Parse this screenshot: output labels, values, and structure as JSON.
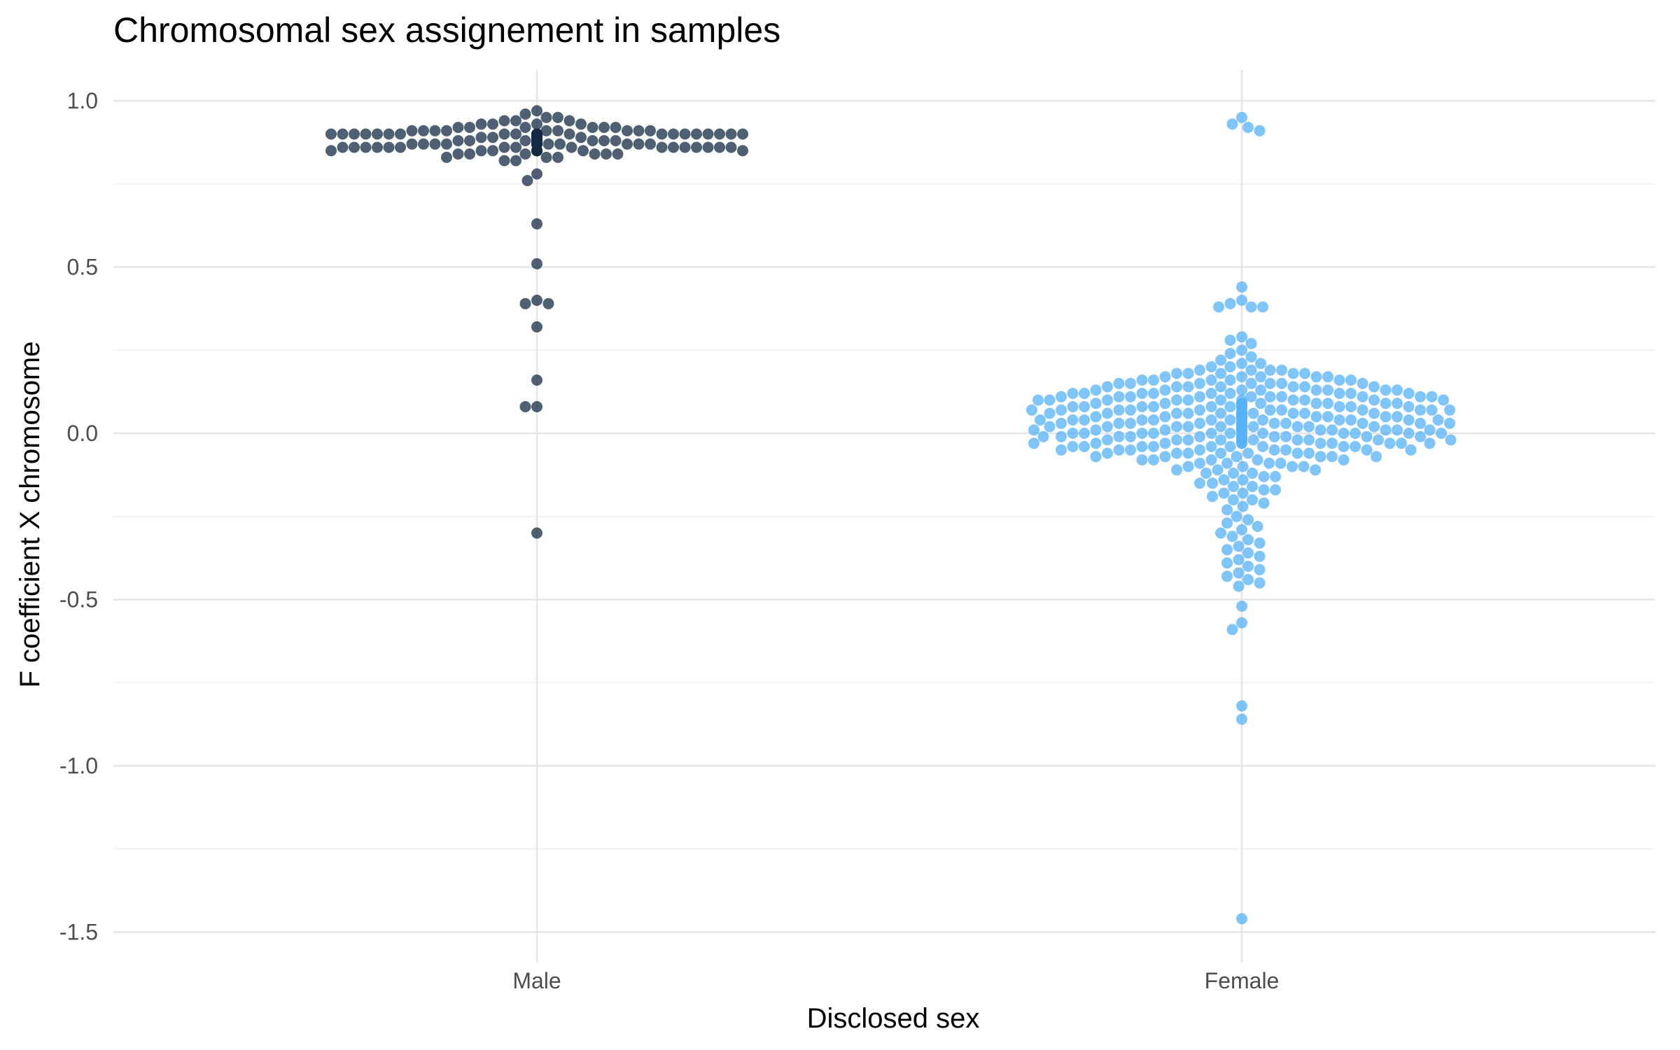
{
  "chart_data": {
    "type": "scatter",
    "subtype": "beeswarm",
    "title": "Chromosomal sex assignement in samples",
    "xlabel": "Disclosed sex",
    "ylabel": "F coefficient X chromosome",
    "categories": [
      "Male",
      "Female"
    ],
    "yticks": [
      "1.0",
      "0.5",
      "0.0",
      "-0.5",
      "-1.0",
      "-1.5"
    ],
    "ytick_values": [
      1.0,
      0.5,
      0.0,
      -0.5,
      -1.0,
      -1.5
    ],
    "ylim": [
      -1.6,
      1.1
    ],
    "grid": true,
    "legend": "none",
    "series": [
      {
        "category": "Male",
        "color": "#132b43",
        "values": [
          0.97,
          0.96,
          0.95,
          0.95,
          0.94,
          0.94,
          0.94,
          0.93,
          0.93,
          0.93,
          0.93,
          0.92,
          0.92,
          0.92,
          0.92,
          0.92,
          0.92,
          0.91,
          0.91,
          0.91,
          0.91,
          0.91,
          0.91,
          0.91,
          0.91,
          0.91,
          0.9,
          0.9,
          0.9,
          0.9,
          0.9,
          0.9,
          0.9,
          0.9,
          0.9,
          0.9,
          0.9,
          0.9,
          0.9,
          0.9,
          0.9,
          0.9,
          0.9,
          0.9,
          0.9,
          0.9,
          0.9,
          0.9,
          0.9,
          0.9,
          0.89,
          0.89,
          0.89,
          0.89,
          0.89,
          0.89,
          0.89,
          0.89,
          0.89,
          0.89,
          0.89,
          0.89,
          0.89,
          0.89,
          0.89,
          0.89,
          0.89,
          0.89,
          0.89,
          0.89,
          0.89,
          0.89,
          0.89,
          0.89,
          0.89,
          0.89,
          0.89,
          0.89,
          0.89,
          0.89,
          0.89,
          0.89,
          0.89,
          0.89,
          0.89,
          0.89,
          0.89,
          0.89,
          0.89,
          0.88,
          0.88,
          0.88,
          0.88,
          0.88,
          0.88,
          0.88,
          0.88,
          0.88,
          0.88,
          0.88,
          0.88,
          0.88,
          0.88,
          0.88,
          0.88,
          0.88,
          0.88,
          0.88,
          0.88,
          0.88,
          0.88,
          0.88,
          0.88,
          0.88,
          0.88,
          0.88,
          0.88,
          0.88,
          0.88,
          0.88,
          0.87,
          0.87,
          0.87,
          0.87,
          0.87,
          0.87,
          0.87,
          0.87,
          0.87,
          0.87,
          0.87,
          0.87,
          0.87,
          0.87,
          0.87,
          0.87,
          0.87,
          0.87,
          0.87,
          0.87,
          0.87,
          0.87,
          0.87,
          0.87,
          0.86,
          0.86,
          0.86,
          0.86,
          0.86,
          0.86,
          0.86,
          0.86,
          0.86,
          0.86,
          0.86,
          0.86,
          0.86,
          0.86,
          0.86,
          0.86,
          0.85,
          0.85,
          0.85,
          0.85,
          0.85,
          0.85,
          0.85,
          0.85,
          0.85,
          0.85,
          0.84,
          0.84,
          0.84,
          0.84,
          0.84,
          0.84,
          0.83,
          0.83,
          0.83,
          0.82,
          0.82,
          0.78,
          0.76,
          0.63,
          0.51,
          0.4,
          0.39,
          0.39,
          0.32,
          0.16,
          0.08,
          0.08,
          -0.3
        ]
      },
      {
        "category": "Female",
        "color": "#56b1f7",
        "values": [
          0.95,
          0.93,
          0.92,
          0.91,
          0.44,
          0.4,
          0.39,
          0.38,
          0.38,
          0.38,
          0.29,
          0.28,
          0.27,
          0.25,
          0.24,
          0.23,
          0.22,
          0.21,
          0.21,
          0.2,
          0.2,
          0.19,
          0.19,
          0.19,
          0.19,
          0.18,
          0.18,
          0.18,
          0.18,
          0.18,
          0.17,
          0.17,
          0.17,
          0.17,
          0.17,
          0.16,
          0.16,
          0.16,
          0.16,
          0.16,
          0.16,
          0.15,
          0.15,
          0.15,
          0.15,
          0.15,
          0.15,
          0.15,
          0.14,
          0.14,
          0.14,
          0.14,
          0.14,
          0.14,
          0.14,
          0.13,
          0.13,
          0.13,
          0.13,
          0.13,
          0.13,
          0.13,
          0.13,
          0.12,
          0.12,
          0.12,
          0.12,
          0.12,
          0.12,
          0.12,
          0.12,
          0.12,
          0.11,
          0.11,
          0.11,
          0.11,
          0.11,
          0.11,
          0.11,
          0.11,
          0.11,
          0.11,
          0.1,
          0.1,
          0.1,
          0.1,
          0.1,
          0.1,
          0.1,
          0.1,
          0.1,
          0.1,
          0.1,
          0.09,
          0.09,
          0.09,
          0.09,
          0.09,
          0.09,
          0.09,
          0.09,
          0.09,
          0.09,
          0.09,
          0.08,
          0.08,
          0.08,
          0.08,
          0.08,
          0.08,
          0.08,
          0.08,
          0.08,
          0.08,
          0.08,
          0.08,
          0.07,
          0.07,
          0.07,
          0.07,
          0.07,
          0.07,
          0.07,
          0.07,
          0.07,
          0.07,
          0.07,
          0.07,
          0.06,
          0.06,
          0.06,
          0.06,
          0.06,
          0.06,
          0.06,
          0.06,
          0.06,
          0.06,
          0.06,
          0.06,
          0.06,
          0.05,
          0.05,
          0.05,
          0.05,
          0.05,
          0.05,
          0.05,
          0.05,
          0.05,
          0.05,
          0.05,
          0.05,
          0.05,
          0.05,
          0.04,
          0.04,
          0.04,
          0.04,
          0.04,
          0.04,
          0.04,
          0.04,
          0.04,
          0.04,
          0.04,
          0.04,
          0.04,
          0.03,
          0.03,
          0.03,
          0.03,
          0.03,
          0.03,
          0.03,
          0.03,
          0.03,
          0.03,
          0.03,
          0.03,
          0.02,
          0.02,
          0.02,
          0.02,
          0.02,
          0.02,
          0.02,
          0.02,
          0.02,
          0.02,
          0.02,
          0.02,
          0.01,
          0.01,
          0.01,
          0.01,
          0.01,
          0.01,
          0.01,
          0.01,
          0.01,
          0.01,
          0.01,
          0.01,
          0.0,
          0.0,
          0.0,
          0.0,
          0.0,
          0.0,
          0.0,
          0.0,
          0.0,
          0.0,
          0.0,
          0.0,
          -0.01,
          -0.01,
          -0.01,
          -0.01,
          -0.01,
          -0.01,
          -0.01,
          -0.01,
          -0.01,
          -0.01,
          -0.01,
          -0.02,
          -0.02,
          -0.02,
          -0.02,
          -0.02,
          -0.02,
          -0.02,
          -0.02,
          -0.02,
          -0.02,
          -0.02,
          -0.03,
          -0.03,
          -0.03,
          -0.03,
          -0.03,
          -0.03,
          -0.03,
          -0.03,
          -0.03,
          -0.03,
          -0.04,
          -0.04,
          -0.04,
          -0.04,
          -0.04,
          -0.04,
          -0.04,
          -0.04,
          -0.04,
          -0.05,
          -0.05,
          -0.05,
          -0.05,
          -0.05,
          -0.05,
          -0.05,
          -0.05,
          -0.06,
          -0.06,
          -0.06,
          -0.06,
          -0.06,
          -0.06,
          -0.06,
          -0.07,
          -0.07,
          -0.07,
          -0.07,
          -0.07,
          -0.07,
          -0.08,
          -0.08,
          -0.08,
          -0.08,
          -0.08,
          -0.09,
          -0.09,
          -0.09,
          -0.09,
          -0.1,
          -0.1,
          -0.1,
          -0.1,
          -0.11,
          -0.11,
          -0.11,
          -0.12,
          -0.12,
          -0.12,
          -0.13,
          -0.13,
          -0.14,
          -0.14,
          -0.15,
          -0.15,
          -0.16,
          -0.16,
          -0.17,
          -0.17,
          -0.18,
          -0.18,
          -0.19,
          -0.2,
          -0.2,
          -0.21,
          -0.22,
          -0.23,
          -0.25,
          -0.26,
          -0.27,
          -0.28,
          -0.29,
          -0.3,
          -0.31,
          -0.32,
          -0.33,
          -0.34,
          -0.35,
          -0.36,
          -0.37,
          -0.38,
          -0.39,
          -0.4,
          -0.41,
          -0.42,
          -0.43,
          -0.44,
          -0.45,
          -0.46,
          -0.52,
          -0.57,
          -0.59,
          -0.82,
          -0.86,
          -1.46
        ]
      }
    ]
  }
}
